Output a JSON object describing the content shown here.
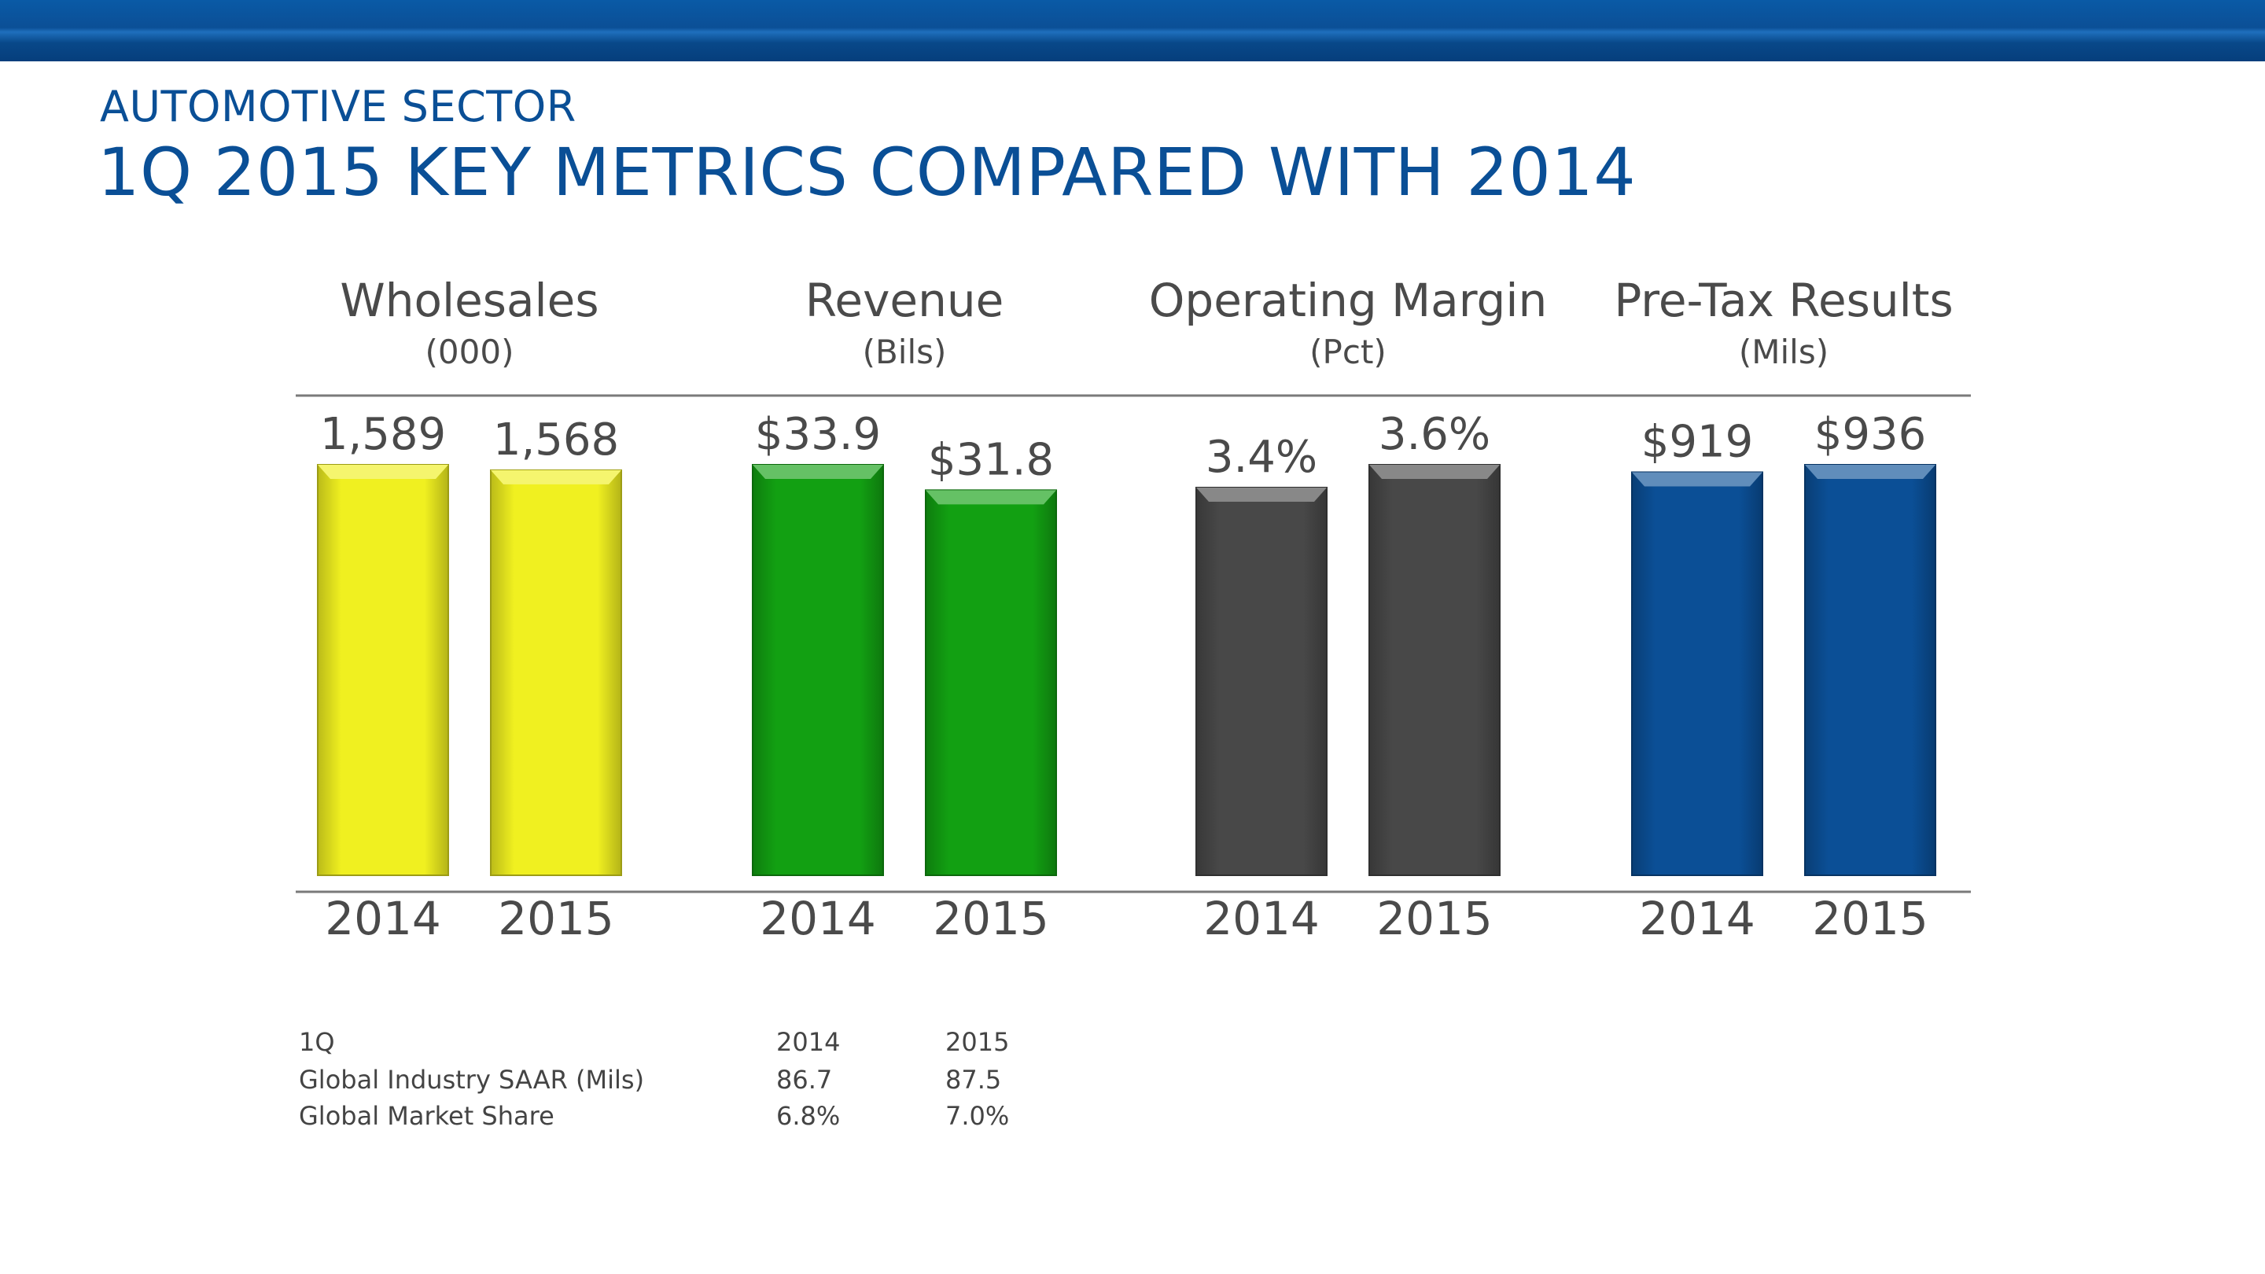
{
  "header": {
    "subtitle": "AUTOMOTIVE SECTOR",
    "title": "1Q 2015 KEY METRICS COMPARED WITH 2014"
  },
  "chart_data": [
    {
      "type": "bar",
      "title": "Wholesales",
      "unit": "(000)",
      "categories": [
        "2014",
        "2015"
      ],
      "values": [
        1589,
        1568
      ],
      "labels": [
        "1,589",
        "1,568"
      ],
      "color": "#f0f020"
    },
    {
      "type": "bar",
      "title": "Revenue",
      "unit": "(Bils)",
      "categories": [
        "2014",
        "2015"
      ],
      "values": [
        33.9,
        31.8
      ],
      "labels": [
        "$33.9",
        "$31.8"
      ],
      "color": "#12a012"
    },
    {
      "type": "bar",
      "title": "Operating Margin",
      "unit": "(Pct)",
      "categories": [
        "2014",
        "2015"
      ],
      "values": [
        3.4,
        3.6
      ],
      "labels": [
        "3.4%",
        "3.6%"
      ],
      "color": "#484848"
    },
    {
      "type": "bar",
      "title": "Pre-Tax Results",
      "unit": "(Mils)",
      "categories": [
        "2014",
        "2015"
      ],
      "values": [
        919,
        936
      ],
      "labels": [
        "$919",
        "$936"
      ],
      "color": "#0b4f96"
    }
  ],
  "table": {
    "header": [
      "1Q",
      "2014",
      "2015"
    ],
    "rows": [
      [
        "Global Industry SAAR (Mils)",
        "86.7",
        "87.5"
      ],
      [
        "Global Market Share",
        "6.8%",
        "7.0%"
      ]
    ]
  }
}
